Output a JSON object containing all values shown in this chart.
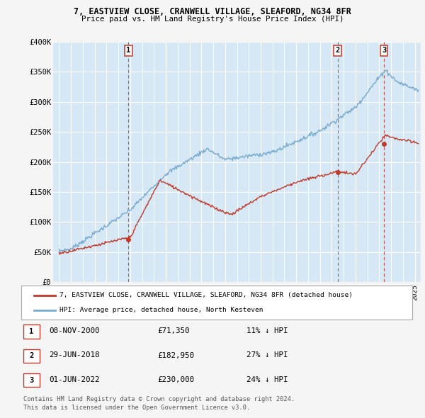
{
  "title_line1": "7, EASTVIEW CLOSE, CRANWELL VILLAGE, SLEAFORD, NG34 8FR",
  "title_line2": "Price paid vs. HM Land Registry's House Price Index (HPI)",
  "ylim": [
    0,
    400000
  ],
  "yticks": [
    0,
    50000,
    100000,
    150000,
    200000,
    250000,
    300000,
    350000,
    400000
  ],
  "ytick_labels": [
    "£0",
    "£50K",
    "£100K",
    "£150K",
    "£200K",
    "£250K",
    "£300K",
    "£350K",
    "£400K"
  ],
  "hpi_color": "#7aabcf",
  "price_color": "#c0392b",
  "vline_color": "#c0392b",
  "background_color": "#f5f5f5",
  "plot_bg_color": "#d6e8f5",
  "grid_color": "#ffffff",
  "sales": [
    {
      "date_num": 2000.86,
      "price": 71350,
      "label": "1"
    },
    {
      "date_num": 2018.49,
      "price": 182950,
      "label": "2"
    },
    {
      "date_num": 2022.41,
      "price": 230000,
      "label": "3"
    }
  ],
  "legend_line1": "7, EASTVIEW CLOSE, CRANWELL VILLAGE, SLEAFORD, NG34 8FR (detached house)",
  "legend_line2": "HPI: Average price, detached house, North Kesteven",
  "table_rows": [
    {
      "num": "1",
      "date": "08-NOV-2000",
      "price": "£71,350",
      "hpi": "11% ↓ HPI"
    },
    {
      "num": "2",
      "date": "29-JUN-2018",
      "price": "£182,950",
      "hpi": "27% ↓ HPI"
    },
    {
      "num": "3",
      "date": "01-JUN-2022",
      "price": "£230,000",
      "hpi": "24% ↓ HPI"
    }
  ],
  "footer": "Contains HM Land Registry data © Crown copyright and database right 2024.\nThis data is licensed under the Open Government Licence v3.0.",
  "xlim_start": 1994.5,
  "xlim_end": 2025.5
}
